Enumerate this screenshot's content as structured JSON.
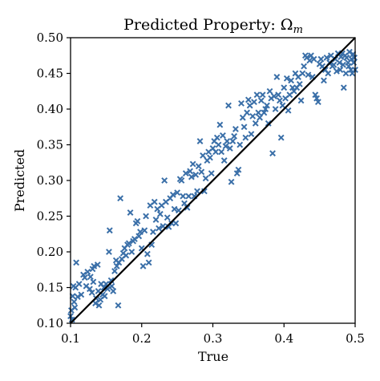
{
  "chart_data": {
    "type": "scatter",
    "title": "Predicted Property: ",
    "title_symbol": "Ω",
    "title_subscript": "m",
    "xlabel": "True",
    "ylabel": "Predicted",
    "xlim": [
      0.1,
      0.5
    ],
    "ylim": [
      0.1,
      0.5
    ],
    "xticks": [
      "0.1",
      "0.2",
      "0.3",
      "0.4",
      "0.5"
    ],
    "yticks": [
      "0.10",
      "0.15",
      "0.20",
      "0.25",
      "0.30",
      "0.35",
      "0.40",
      "0.45",
      "0.50"
    ],
    "grid": false,
    "marker": "x",
    "marker_color": "#3a6fa8",
    "reference_line": {
      "from": [
        0.1,
        0.1
      ],
      "to": [
        0.5,
        0.5
      ],
      "color": "#000000"
    },
    "points": [
      [
        0.1,
        0.11
      ],
      [
        0.101,
        0.118
      ],
      [
        0.102,
        0.105
      ],
      [
        0.103,
        0.138
      ],
      [
        0.104,
        0.152
      ],
      [
        0.105,
        0.13
      ],
      [
        0.106,
        0.122
      ],
      [
        0.107,
        0.15
      ],
      [
        0.108,
        0.185
      ],
      [
        0.11,
        0.137
      ],
      [
        0.112,
        0.155
      ],
      [
        0.115,
        0.14
      ],
      [
        0.118,
        0.168
      ],
      [
        0.12,
        0.164
      ],
      [
        0.122,
        0.152
      ],
      [
        0.124,
        0.172
      ],
      [
        0.127,
        0.148
      ],
      [
        0.128,
        0.165
      ],
      [
        0.13,
        0.143
      ],
      [
        0.131,
        0.176
      ],
      [
        0.132,
        0.158
      ],
      [
        0.133,
        0.18
      ],
      [
        0.135,
        0.128
      ],
      [
        0.136,
        0.135
      ],
      [
        0.138,
        0.182
      ],
      [
        0.139,
        0.145
      ],
      [
        0.14,
        0.125
      ],
      [
        0.142,
        0.133
      ],
      [
        0.143,
        0.155
      ],
      [
        0.145,
        0.14
      ],
      [
        0.147,
        0.15
      ],
      [
        0.148,
        0.138
      ],
      [
        0.15,
        0.155
      ],
      [
        0.152,
        0.148
      ],
      [
        0.154,
        0.2
      ],
      [
        0.155,
        0.23
      ],
      [
        0.157,
        0.16
      ],
      [
        0.158,
        0.152
      ],
      [
        0.16,
        0.145
      ],
      [
        0.162,
        0.173
      ],
      [
        0.164,
        0.188
      ],
      [
        0.165,
        0.18
      ],
      [
        0.167,
        0.125
      ],
      [
        0.168,
        0.185
      ],
      [
        0.17,
        0.275
      ],
      [
        0.172,
        0.19
      ],
      [
        0.174,
        0.198
      ],
      [
        0.176,
        0.205
      ],
      [
        0.178,
        0.195
      ],
      [
        0.18,
        0.21
      ],
      [
        0.182,
        0.212
      ],
      [
        0.184,
        0.255
      ],
      [
        0.186,
        0.2
      ],
      [
        0.188,
        0.215
      ],
      [
        0.19,
        0.218
      ],
      [
        0.192,
        0.24
      ],
      [
        0.194,
        0.243
      ],
      [
        0.196,
        0.222
      ],
      [
        0.198,
        0.228
      ],
      [
        0.2,
        0.205
      ],
      [
        0.202,
        0.18
      ],
      [
        0.204,
        0.23
      ],
      [
        0.206,
        0.25
      ],
      [
        0.208,
        0.197
      ],
      [
        0.21,
        0.185
      ],
      [
        0.212,
        0.265
      ],
      [
        0.214,
        0.21
      ],
      [
        0.216,
        0.228
      ],
      [
        0.218,
        0.27
      ],
      [
        0.22,
        0.245
      ],
      [
        0.222,
        0.26
      ],
      [
        0.224,
        0.233
      ],
      [
        0.226,
        0.253
      ],
      [
        0.228,
        0.265
      ],
      [
        0.23,
        0.236
      ],
      [
        0.232,
        0.3
      ],
      [
        0.234,
        0.27
      ],
      [
        0.236,
        0.248
      ],
      [
        0.238,
        0.235
      ],
      [
        0.24,
        0.275
      ],
      [
        0.242,
        0.24
      ],
      [
        0.244,
        0.28
      ],
      [
        0.246,
        0.26
      ],
      [
        0.248,
        0.24
      ],
      [
        0.25,
        0.283
      ],
      [
        0.252,
        0.258
      ],
      [
        0.254,
        0.302
      ],
      [
        0.256,
        0.3
      ],
      [
        0.258,
        0.278
      ],
      [
        0.26,
        0.268
      ],
      [
        0.262,
        0.31
      ],
      [
        0.264,
        0.262
      ],
      [
        0.266,
        0.278
      ],
      [
        0.268,
        0.313
      ],
      [
        0.27,
        0.305
      ],
      [
        0.272,
        0.323
      ],
      [
        0.274,
        0.278
      ],
      [
        0.276,
        0.308
      ],
      [
        0.278,
        0.285
      ],
      [
        0.28,
        0.32
      ],
      [
        0.282,
        0.355
      ],
      [
        0.284,
        0.312
      ],
      [
        0.286,
        0.335
      ],
      [
        0.288,
        0.285
      ],
      [
        0.29,
        0.303
      ],
      [
        0.292,
        0.328
      ],
      [
        0.294,
        0.34
      ],
      [
        0.296,
        0.332
      ],
      [
        0.298,
        0.31
      ],
      [
        0.3,
        0.345
      ],
      [
        0.302,
        0.355
      ],
      [
        0.304,
        0.34
      ],
      [
        0.306,
        0.36
      ],
      [
        0.308,
        0.35
      ],
      [
        0.31,
        0.378
      ],
      [
        0.312,
        0.34
      ],
      [
        0.314,
        0.363
      ],
      [
        0.316,
        0.328
      ],
      [
        0.318,
        0.348
      ],
      [
        0.32,
        0.355
      ],
      [
        0.322,
        0.405
      ],
      [
        0.324,
        0.345
      ],
      [
        0.326,
        0.298
      ],
      [
        0.328,
        0.355
      ],
      [
        0.33,
        0.362
      ],
      [
        0.332,
        0.372
      ],
      [
        0.334,
        0.31
      ],
      [
        0.336,
        0.315
      ],
      [
        0.338,
        0.35
      ],
      [
        0.34,
        0.408
      ],
      [
        0.342,
        0.388
      ],
      [
        0.344,
        0.375
      ],
      [
        0.346,
        0.36
      ],
      [
        0.348,
        0.395
      ],
      [
        0.35,
        0.413
      ],
      [
        0.352,
        0.405
      ],
      [
        0.354,
        0.365
      ],
      [
        0.356,
        0.39
      ],
      [
        0.358,
        0.41
      ],
      [
        0.36,
        0.38
      ],
      [
        0.362,
        0.42
      ],
      [
        0.364,
        0.395
      ],
      [
        0.366,
        0.388
      ],
      [
        0.368,
        0.412
      ],
      [
        0.37,
        0.42
      ],
      [
        0.372,
        0.395
      ],
      [
        0.374,
        0.4
      ],
      [
        0.376,
        0.405
      ],
      [
        0.378,
        0.38
      ],
      [
        0.38,
        0.425
      ],
      [
        0.382,
        0.415
      ],
      [
        0.384,
        0.338
      ],
      [
        0.386,
        0.418
      ],
      [
        0.388,
        0.4
      ],
      [
        0.39,
        0.445
      ],
      [
        0.392,
        0.42
      ],
      [
        0.394,
        0.412
      ],
      [
        0.396,
        0.36
      ],
      [
        0.398,
        0.405
      ],
      [
        0.4,
        0.43
      ],
      [
        0.402,
        0.415
      ],
      [
        0.404,
        0.443
      ],
      [
        0.406,
        0.398
      ],
      [
        0.408,
        0.42
      ],
      [
        0.41,
        0.44
      ],
      [
        0.412,
        0.43
      ],
      [
        0.414,
        0.425
      ],
      [
        0.416,
        0.45
      ],
      [
        0.418,
        0.43
      ],
      [
        0.42,
        0.445
      ],
      [
        0.422,
        0.435
      ],
      [
        0.424,
        0.412
      ],
      [
        0.426,
        0.45
      ],
      [
        0.428,
        0.46
      ],
      [
        0.43,
        0.475
      ],
      [
        0.432,
        0.472
      ],
      [
        0.434,
        0.448
      ],
      [
        0.436,
        0.468
      ],
      [
        0.438,
        0.475
      ],
      [
        0.44,
        0.445
      ],
      [
        0.442,
        0.47
      ],
      [
        0.444,
        0.42
      ],
      [
        0.446,
        0.415
      ],
      [
        0.448,
        0.41
      ],
      [
        0.45,
        0.463
      ],
      [
        0.452,
        0.47
      ],
      [
        0.454,
        0.46
      ],
      [
        0.456,
        0.44
      ],
      [
        0.458,
        0.455
      ],
      [
        0.46,
        0.472
      ],
      [
        0.462,
        0.45
      ],
      [
        0.464,
        0.465
      ],
      [
        0.466,
        0.475
      ],
      [
        0.468,
        0.46
      ],
      [
        0.47,
        0.462
      ],
      [
        0.472,
        0.47
      ],
      [
        0.474,
        0.453
      ],
      [
        0.476,
        0.478
      ],
      [
        0.478,
        0.465
      ],
      [
        0.48,
        0.473
      ],
      [
        0.482,
        0.478
      ],
      [
        0.484,
        0.43
      ],
      [
        0.486,
        0.475
      ],
      [
        0.488,
        0.472
      ],
      [
        0.49,
        0.465
      ],
      [
        0.492,
        0.48
      ],
      [
        0.494,
        0.455
      ],
      [
        0.495,
        0.47
      ],
      [
        0.496,
        0.45
      ],
      [
        0.497,
        0.477
      ],
      [
        0.498,
        0.465
      ],
      [
        0.499,
        0.472
      ],
      [
        0.5,
        0.455
      ],
      [
        0.491,
        0.46
      ],
      [
        0.487,
        0.45
      ],
      [
        0.483,
        0.462
      ],
      [
        0.479,
        0.455
      ]
    ]
  }
}
